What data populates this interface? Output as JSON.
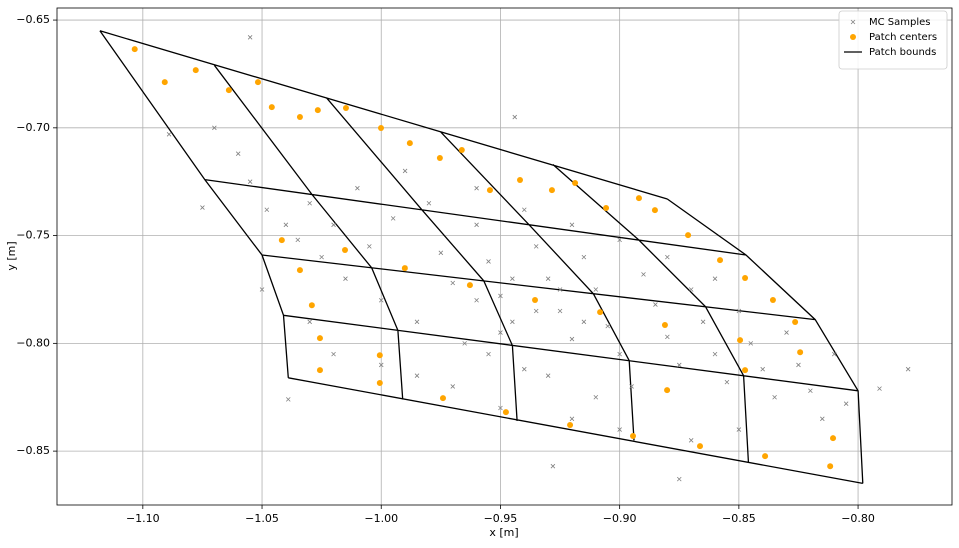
{
  "chart_data": {
    "type": "scatter",
    "xlabel": "x  [m]",
    "ylabel": "y  [m]",
    "xlim": [
      -1.136,
      -0.7606
    ],
    "ylim": [
      -0.875,
      -0.6444
    ],
    "xticks": [
      {
        "value": -1.1,
        "label": "−1.10"
      },
      {
        "value": -1.05,
        "label": "−1.05"
      },
      {
        "value": -1.0,
        "label": "−1.00"
      },
      {
        "value": -0.95,
        "label": "−0.95"
      },
      {
        "value": -0.9,
        "label": "−0.90"
      },
      {
        "value": -0.85,
        "label": "−0.85"
      },
      {
        "value": -0.8,
        "label": "−0.80"
      }
    ],
    "yticks": [
      {
        "value": -0.65,
        "label": "−0.65"
      },
      {
        "value": -0.7,
        "label": "−0.70"
      },
      {
        "value": -0.75,
        "label": "−0.75"
      },
      {
        "value": -0.8,
        "label": "−0.80"
      },
      {
        "value": -0.85,
        "label": "−0.85"
      }
    ],
    "grid": true,
    "legend": "upper right",
    "series": [
      {
        "name": "MC Samples",
        "color": "#808080",
        "style": "x",
        "x": [
          -1.07,
          -1.06,
          -1.055,
          -1.048,
          -1.04,
          -1.035,
          -1.03,
          -1.025,
          -1.02,
          -1.015,
          -1.01,
          -1.005,
          -1.0,
          -0.995,
          -0.99,
          -0.985,
          -0.98,
          -0.975,
          -0.97,
          -0.965,
          -0.96,
          -0.955,
          -0.95,
          -0.945,
          -0.94,
          -0.935,
          -0.93,
          -0.925,
          -0.92,
          -0.915,
          -0.91,
          -0.905,
          -0.9,
          -0.895,
          -0.89,
          -0.885,
          -0.88,
          -0.875,
          -0.87,
          -0.865,
          -0.86,
          -0.855,
          -0.85,
          -0.845,
          -0.84,
          -0.835,
          -0.83,
          -0.825,
          -0.82,
          -0.815,
          -0.81,
          -0.805,
          -0.99,
          -0.96,
          -0.94,
          -0.92,
          -0.9,
          -0.88,
          -0.86,
          -1.0,
          -0.97,
          -0.95,
          -0.92,
          -0.9,
          -0.87,
          -0.85,
          -1.03,
          -1.02,
          -0.985,
          -0.955,
          -0.93,
          -0.91,
          -0.945,
          -0.935,
          -0.925,
          -0.915,
          -0.95,
          -0.96,
          -1.055,
          -0.944,
          -0.779,
          -0.791,
          -1.05,
          -1.039,
          -0.875,
          -0.928,
          -1.089,
          -1.075
        ],
        "y": [
          -0.7,
          -0.712,
          -0.725,
          -0.738,
          -0.745,
          -0.752,
          -0.735,
          -0.76,
          -0.745,
          -0.77,
          -0.728,
          -0.755,
          -0.78,
          -0.742,
          -0.765,
          -0.79,
          -0.735,
          -0.758,
          -0.772,
          -0.8,
          -0.745,
          -0.762,
          -0.778,
          -0.79,
          -0.812,
          -0.755,
          -0.77,
          -0.785,
          -0.798,
          -0.76,
          -0.775,
          -0.792,
          -0.805,
          -0.82,
          -0.768,
          -0.782,
          -0.797,
          -0.81,
          -0.775,
          -0.79,
          -0.805,
          -0.818,
          -0.785,
          -0.8,
          -0.812,
          -0.825,
          -0.795,
          -0.81,
          -0.822,
          -0.835,
          -0.805,
          -0.828,
          -0.72,
          -0.728,
          -0.738,
          -0.745,
          -0.752,
          -0.76,
          -0.77,
          -0.81,
          -0.82,
          -0.83,
          -0.835,
          -0.84,
          -0.845,
          -0.84,
          -0.79,
          -0.805,
          -0.815,
          -0.805,
          -0.815,
          -0.825,
          -0.77,
          -0.785,
          -0.775,
          -0.79,
          -0.795,
          -0.78,
          -0.658,
          -0.695,
          -0.812,
          -0.821,
          -0.775,
          -0.826,
          -0.863,
          -0.857,
          -0.703,
          -0.737
        ]
      },
      {
        "name": "Patch centers",
        "color": "#ffa500",
        "style": "dot",
        "x": [
          -1.1034,
          -1.0908,
          -1.0778,
          -1.0639,
          -1.0517,
          -1.0459,
          -1.0341,
          -1.0266,
          -1.0148,
          -1.0001,
          -0.988,
          -0.9754,
          -0.9662,
          -0.9544,
          -0.9418,
          -0.9284,
          -0.9187,
          -0.9057,
          -0.8919,
          -0.8852,
          -0.8713,
          -0.8579,
          -0.8474,
          -0.8357,
          -0.8264,
          -1.0417,
          -1.0341,
          -1.0291,
          -1.0257,
          -1.0257,
          -1.0006,
          -1.0006,
          -0.9741,
          -0.9477,
          -0.9208,
          -0.8944,
          -0.8663,
          -0.839,
          -0.8117,
          -0.8105,
          -0.8243,
          -0.8474,
          -0.8801,
          -0.9628,
          -0.9355,
          -0.9082,
          -0.9901,
          -1.0152,
          -0.881,
          -0.8495
        ],
        "y": [
          -0.6635,
          -0.6788,
          -0.6732,
          -0.6825,
          -0.6788,
          -0.6904,
          -0.695,
          -0.6918,
          -0.6908,
          -0.7001,
          -0.7071,
          -0.714,
          -0.7103,
          -0.7289,
          -0.7242,
          -0.7289,
          -0.7256,
          -0.7372,
          -0.7326,
          -0.7382,
          -0.7498,
          -0.7614,
          -0.7697,
          -0.7799,
          -0.7901,
          -0.7521,
          -0.766,
          -0.7823,
          -0.7976,
          -0.8124,
          -0.8055,
          -0.8184,
          -0.8254,
          -0.8319,
          -0.8379,
          -0.843,
          -0.8477,
          -0.8523,
          -0.857,
          -0.844,
          -0.8041,
          -0.8124,
          -0.8217,
          -0.773,
          -0.7799,
          -0.7855,
          -0.7651,
          -0.7567,
          -0.7915,
          -0.7985
        ]
      },
      {
        "name": "Patch bounds",
        "color": "#000000",
        "style": "line",
        "x": [
          -1.118,
          -0.88,
          null,
          -1.074,
          -0.847,
          null,
          -1.05,
          -0.818,
          null,
          -1.041,
          -0.8,
          null,
          -1.039,
          -0.798,
          null,
          -1.118,
          -1.074,
          -1.05,
          -1.041,
          -1.039,
          null,
          -1.07,
          -1.029,
          -1.004,
          -0.993,
          -0.991,
          null,
          -1.023,
          -0.983,
          -0.957,
          -0.945,
          -0.943,
          null,
          -0.975,
          -0.938,
          -0.911,
          -0.896,
          -0.894,
          null,
          -0.928,
          -0.892,
          -0.864,
          -0.848,
          -0.846,
          null,
          -0.88,
          -0.847,
          -0.818,
          -0.8,
          -0.798
        ],
        "y": [
          -0.655,
          -0.733,
          null,
          -0.724,
          -0.759,
          null,
          -0.759,
          -0.789,
          null,
          -0.787,
          -0.822,
          null,
          -0.816,
          -0.865,
          null,
          -0.655,
          -0.724,
          -0.759,
          -0.787,
          -0.816,
          null,
          -0.671,
          -0.731,
          -0.765,
          -0.794,
          -0.826,
          null,
          -0.686,
          -0.738,
          -0.771,
          -0.801,
          -0.836,
          null,
          -0.702,
          -0.745,
          -0.777,
          -0.808,
          -0.845,
          null,
          -0.717,
          -0.752,
          -0.783,
          -0.815,
          -0.855,
          null,
          -0.733,
          -0.759,
          -0.789,
          -0.822,
          -0.865
        ]
      }
    ]
  }
}
